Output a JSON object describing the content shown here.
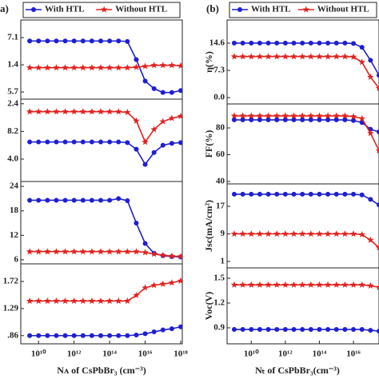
{
  "chart_data": [
    {
      "type": "line",
      "panel_label": "a)",
      "xscale": "log",
      "xlim": [
        1000000000.0,
        1.23e+18
      ],
      "x": [
        3160000000.0,
        10000000000.0,
        31600000000.0,
        100000000000.0,
        316000000000.0,
        1000000000000.0,
        3160000000000.0,
        10000000000000.0,
        31600000000000.0,
        100000000000000.0,
        316000000000000.0,
        1000000000000000.0,
        3160000000000000.0,
        1e+16,
        3.16e+16,
        1e+17,
        3.16e+17,
        1e+18
      ],
      "ylim": [
        4.2,
        20.8
      ],
      "yticks": [
        {
          "value": 17.1,
          "label": "7.1"
        },
        {
          "value": 11.4,
          "label": "1.4"
        },
        5.7
      ],
      "legend": "top",
      "series": [
        {
          "name": "With HTL",
          "color": "#1f1fd0",
          "marker": "circle",
          "values": [
            16.4,
            16.4,
            16.4,
            16.4,
            16.4,
            16.4,
            16.4,
            16.4,
            16.4,
            16.4,
            16.4,
            16.3,
            12.5,
            8.0,
            6.4,
            5.6,
            5.6,
            6.0
          ]
        },
        {
          "name": "Without HTL",
          "color": "#e0221f",
          "marker": "star",
          "values": [
            10.8,
            10.8,
            10.8,
            10.8,
            10.8,
            10.8,
            10.8,
            10.8,
            10.8,
            10.8,
            10.8,
            10.8,
            10.9,
            11.1,
            11.3,
            11.3,
            11.3,
            11.2
          ]
        }
      ]
    },
    {
      "type": "line",
      "xscale": "log",
      "xlim": [
        1000000000.0,
        1.23e+18
      ],
      "x": [
        3160000000.0,
        10000000000.0,
        31600000000.0,
        100000000000.0,
        316000000000.0,
        1000000000000.0,
        3160000000000.0,
        10000000000000.0,
        31600000000000.0,
        100000000000000.0,
        316000000000000.0,
        1000000000000000.0,
        3160000000000000.0,
        1e+16,
        3.16e+16,
        1e+17,
        3.16e+17,
        1e+18
      ],
      "ylim": [
        0.6,
        13.1
      ],
      "yticks": [
        {
          "value": 12.4,
          "label": "2.4"
        },
        8.2,
        {
          "value": 4.0,
          "label": "4.0"
        }
      ],
      "series": [
        {
          "name": "With HTL",
          "color": "#1f1fd0",
          "marker": "circle",
          "values": [
            6.6,
            6.6,
            6.6,
            6.6,
            6.6,
            6.6,
            6.6,
            6.6,
            6.6,
            6.6,
            6.6,
            6.5,
            5.5,
            3.2,
            5.0,
            6.1,
            6.4,
            6.5
          ]
        },
        {
          "name": "Without HTL",
          "color": "#e0221f",
          "marker": "star",
          "values": [
            11.2,
            11.2,
            11.2,
            11.2,
            11.2,
            11.2,
            11.2,
            11.2,
            11.2,
            11.2,
            11.2,
            11.1,
            9.8,
            6.6,
            8.5,
            9.7,
            10.2,
            10.5
          ]
        }
      ]
    },
    {
      "type": "line",
      "xscale": "log",
      "xlim": [
        1000000000.0,
        1.23e+18
      ],
      "x": [
        3160000000.0,
        10000000000.0,
        31600000000.0,
        100000000000.0,
        316000000000.0,
        1000000000000.0,
        3160000000000.0,
        10000000000000.0,
        31600000000000.0,
        100000000000000.0,
        316000000000000.0,
        1000000000000000.0,
        3160000000000000.0,
        1e+16,
        3.16e+16,
        1e+17,
        3.16e+17,
        1e+18
      ],
      "ylim": [
        5.0,
        25.2
      ],
      "yticks": [
        24,
        18,
        12,
        6
      ],
      "series": [
        {
          "name": "With HTL",
          "color": "#1f1fd0",
          "marker": "circle",
          "values": [
            20.6,
            20.6,
            20.6,
            20.6,
            20.6,
            20.6,
            20.6,
            20.6,
            20.6,
            20.6,
            21.0,
            20.5,
            15.0,
            10.0,
            7.6,
            7.0,
            6.8,
            6.7
          ]
        },
        {
          "name": "Without HTL",
          "color": "#e0221f",
          "marker": "star",
          "values": [
            8.0,
            8.0,
            8.0,
            8.0,
            8.0,
            8.0,
            8.0,
            8.0,
            8.0,
            8.0,
            8.0,
            8.0,
            8.0,
            7.8,
            7.4,
            7.1,
            6.9,
            6.8
          ]
        }
      ]
    },
    {
      "type": "line",
      "xscale": "log",
      "xlim": [
        1000000000.0,
        1.23e+18
      ],
      "x": [
        3160000000.0,
        10000000000.0,
        31600000000.0,
        100000000000.0,
        316000000000.0,
        1000000000000.0,
        3160000000000.0,
        10000000000000.0,
        31600000000000.0,
        100000000000000.0,
        316000000000000.0,
        1000000000000000.0,
        3160000000000000.0,
        1e+16,
        3.16e+16,
        1e+17,
        3.16e+17,
        1e+18
      ],
      "ylim": [
        0.73,
        2.0
      ],
      "yticks": [
        1.72,
        1.29,
        {
          "value": 0.86,
          "label": ".86"
        }
      ],
      "xticks": [
        {
          "value": 10000000000.0,
          "label": "10¹⁰"
        },
        {
          "value": 1000000000000.0,
          "label": "10¹²"
        },
        {
          "value": 100000000000000.0,
          "label": "10¹⁴"
        },
        {
          "value": 1e+16,
          "label": "10¹⁶"
        },
        {
          "value": 1e+18,
          "label": "10¹⁸"
        }
      ],
      "xlabel": "Nᴀ of CsPbBr₃ (cm⁻³)",
      "series": [
        {
          "name": "With HTL",
          "color": "#1f1fd0",
          "marker": "circle",
          "values": [
            0.86,
            0.86,
            0.86,
            0.86,
            0.86,
            0.86,
            0.86,
            0.86,
            0.86,
            0.86,
            0.86,
            0.86,
            0.87,
            0.89,
            0.92,
            0.95,
            0.97,
            1.0
          ]
        },
        {
          "name": "Without HTL",
          "color": "#e0221f",
          "marker": "star",
          "values": [
            1.41,
            1.41,
            1.41,
            1.41,
            1.41,
            1.41,
            1.41,
            1.41,
            1.41,
            1.41,
            1.41,
            1.41,
            1.5,
            1.62,
            1.66,
            1.68,
            1.7,
            1.73
          ]
        }
      ]
    },
    {
      "type": "line",
      "panel_label": "(b)",
      "xscale": "log",
      "xlim": [
        380000000.0,
        3.16e+17
      ],
      "x": [
        1000000000.0,
        3160000000.0,
        10000000000.0,
        31600000000.0,
        100000000000.0,
        316000000000.0,
        1000000000000.0,
        3160000000000.0,
        10000000000000.0,
        31600000000000.0,
        100000000000000.0,
        316000000000000.0,
        1000000000000000.0,
        3160000000000000.0,
        1e+16,
        3.16e+16,
        1e+17,
        3.16e+17
      ],
      "ylim": [
        -1.7,
        20.8
      ],
      "yticks": [
        14.6,
        7.3,
        {
          "value": 0,
          "label": "0.0"
        }
      ],
      "ylabel": "η(%)",
      "legend": "top",
      "series": [
        {
          "name": "With HTL",
          "color": "#1f1fd0",
          "marker": "circle",
          "values": [
            14.6,
            14.6,
            14.6,
            14.6,
            14.6,
            14.6,
            14.6,
            14.6,
            14.6,
            14.6,
            14.6,
            14.6,
            14.6,
            14.6,
            14.5,
            13.5,
            10.0,
            6.0
          ]
        },
        {
          "name": "Without HTL",
          "color": "#e0221f",
          "marker": "star",
          "values": [
            11.0,
            11.0,
            11.0,
            11.0,
            11.0,
            11.0,
            11.0,
            11.0,
            11.0,
            11.0,
            11.0,
            11.0,
            11.0,
            11.0,
            10.9,
            9.5,
            5.5,
            2.5
          ]
        }
      ]
    },
    {
      "type": "line",
      "xscale": "log",
      "xlim": [
        380000000.0,
        3.16e+17
      ],
      "x": [
        1000000000.0,
        3160000000.0,
        10000000000.0,
        31600000000.0,
        100000000000.0,
        316000000000.0,
        1000000000000.0,
        3160000000000.0,
        10000000000000.0,
        31600000000000.0,
        100000000000000.0,
        316000000000000.0,
        1000000000000000.0,
        3160000000000000.0,
        1e+16,
        3.16e+16,
        1e+17,
        3.16e+17
      ],
      "ylim": [
        38.2,
        97.9
      ],
      "yticks": [
        80,
        60,
        40
      ],
      "ylabel": "FF(%)",
      "series": [
        {
          "name": "With HTL",
          "color": "#1f1fd0",
          "marker": "circle",
          "values": [
            86,
            86,
            86,
            86,
            86,
            86,
            86,
            86,
            86,
            86,
            86,
            86,
            86,
            86,
            85.5,
            84,
            79,
            77
          ]
        },
        {
          "name": "Without HTL",
          "color": "#e0221f",
          "marker": "star",
          "values": [
            89,
            89,
            89,
            89,
            89,
            89,
            89,
            89,
            89,
            89,
            89,
            89,
            89,
            89,
            88.5,
            87,
            76,
            63
          ]
        }
      ]
    },
    {
      "type": "line",
      "xscale": "log",
      "xlim": [
        380000000.0,
        3.16e+17
      ],
      "x": [
        1000000000.0,
        3160000000.0,
        10000000000.0,
        31600000000.0,
        100000000000.0,
        316000000000.0,
        1000000000000.0,
        3160000000000.0,
        10000000000000.0,
        31600000000000.0,
        100000000000000.0,
        316000000000000.0,
        1000000000000000.0,
        3160000000000000.0,
        1e+16,
        3.16e+16,
        1e+17,
        3.16e+17
      ],
      "ylim": [
        -0.86,
        23.5
      ],
      "yticks": [
        17,
        9,
        1
      ],
      "ylabel": "Jsc(mA/cm²)",
      "series": [
        {
          "name": "With HTL",
          "color": "#1f1fd0",
          "marker": "circle",
          "values": [
            20.5,
            20.5,
            20.5,
            20.5,
            20.5,
            20.5,
            20.5,
            20.5,
            20.5,
            20.5,
            20.5,
            20.5,
            20.5,
            20.5,
            20.5,
            20.3,
            19.0,
            17.4
          ]
        },
        {
          "name": "Without HTL",
          "color": "#e0221f",
          "marker": "star",
          "values": [
            9,
            9,
            9,
            9,
            9,
            9,
            9,
            9,
            9,
            9,
            9,
            9,
            9,
            9,
            9,
            8.8,
            7.2,
            5.0
          ]
        }
      ]
    },
    {
      "type": "line",
      "xscale": "log",
      "xlim": [
        380000000.0,
        3.16e+17
      ],
      "x": [
        1000000000.0,
        3160000000.0,
        10000000000.0,
        31600000000.0,
        100000000000.0,
        316000000000.0,
        1000000000000.0,
        3160000000000.0,
        10000000000000.0,
        31600000000000.0,
        100000000000000.0,
        316000000000000.0,
        1000000000000000.0,
        3160000000000000.0,
        1e+16,
        3.16e+16,
        1e+17,
        3.16e+17
      ],
      "ylim": [
        0.706,
        1.626
      ],
      "yticks": [
        1.5,
        1.2,
        0.9
      ],
      "ylabel": "Voc(V)",
      "xticks": [
        {
          "value": 10000000000.0,
          "label": "10¹⁰"
        },
        {
          "value": 1000000000000.0,
          "label": "10¹²"
        },
        {
          "value": 100000000000000.0,
          "label": "10¹⁴"
        },
        {
          "value": 1e+16,
          "label": "10¹⁶"
        }
      ],
      "xlabel": "Nₜ of CsPbBr₃(cm⁻³)",
      "series": [
        {
          "name": "With HTL",
          "color": "#1f1fd0",
          "marker": "circle",
          "values": [
            0.88,
            0.88,
            0.88,
            0.88,
            0.88,
            0.88,
            0.88,
            0.88,
            0.88,
            0.88,
            0.88,
            0.88,
            0.88,
            0.88,
            0.88,
            0.88,
            0.87,
            0.86
          ]
        },
        {
          "name": "Without HTL",
          "color": "#e0221f",
          "marker": "star",
          "values": [
            1.42,
            1.42,
            1.42,
            1.42,
            1.42,
            1.42,
            1.42,
            1.42,
            1.42,
            1.42,
            1.42,
            1.42,
            1.42,
            1.42,
            1.42,
            1.42,
            1.41,
            1.39
          ]
        }
      ]
    }
  ]
}
